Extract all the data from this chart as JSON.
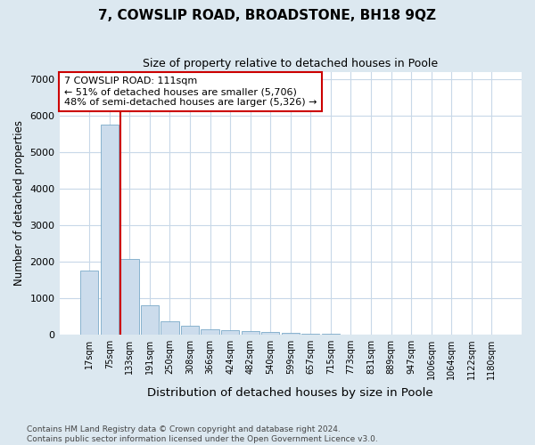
{
  "title": "7, COWSLIP ROAD, BROADSTONE, BH18 9QZ",
  "subtitle": "Size of property relative to detached houses in Poole",
  "xlabel": "Distribution of detached houses by size in Poole",
  "ylabel": "Number of detached properties",
  "bar_labels": [
    "17sqm",
    "75sqm",
    "133sqm",
    "191sqm",
    "250sqm",
    "308sqm",
    "366sqm",
    "424sqm",
    "482sqm",
    "540sqm",
    "599sqm",
    "657sqm",
    "715sqm",
    "773sqm",
    "831sqm",
    "889sqm",
    "947sqm",
    "1006sqm",
    "1064sqm",
    "1122sqm",
    "1180sqm"
  ],
  "bar_heights": [
    1750,
    5750,
    2080,
    800,
    370,
    240,
    150,
    110,
    90,
    65,
    50,
    30,
    15,
    5,
    4,
    3,
    2,
    2,
    1,
    1,
    1
  ],
  "bar_color": "#ccdcec",
  "bar_edge_color": "#7aaac8",
  "vline_x": 1.52,
  "vline_color": "#cc0000",
  "annotation_line1": "7 COWSLIP ROAD: 111sqm",
  "annotation_line2": "← 51% of detached houses are smaller (5,706)",
  "annotation_line3": "48% of semi-detached houses are larger (5,326) →",
  "annotation_box_color": "#ffffff",
  "annotation_box_edge": "#cc0000",
  "ylim": [
    0,
    7200
  ],
  "yticks": [
    0,
    1000,
    2000,
    3000,
    4000,
    5000,
    6000,
    7000
  ],
  "fig_bg_color": "#dce8f0",
  "plot_bg_color": "#ffffff",
  "grid_color": "#c8d8e8",
  "footer_line1": "Contains HM Land Registry data © Crown copyright and database right 2024.",
  "footer_line2": "Contains public sector information licensed under the Open Government Licence v3.0."
}
